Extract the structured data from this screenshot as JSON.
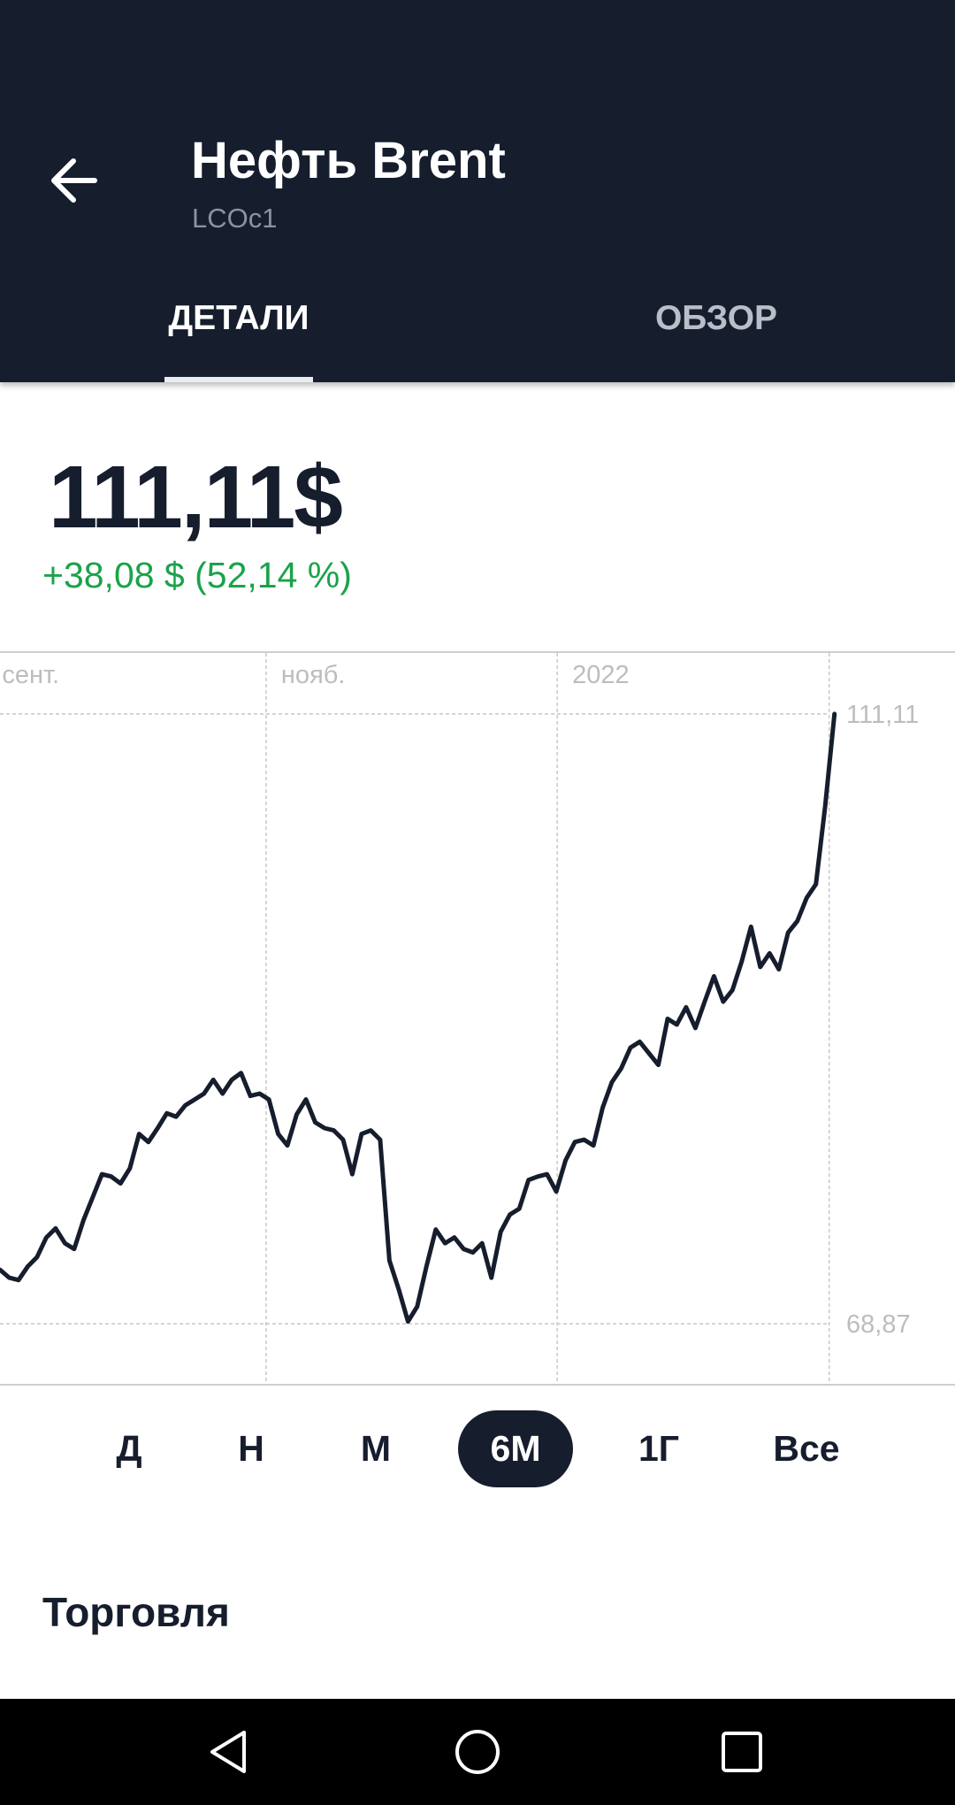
{
  "header": {
    "title": "Нефть Brent",
    "subtitle": "LCOc1"
  },
  "tabs": [
    "ДЕТАЛИ",
    "ОБЗОР"
  ],
  "quote": {
    "price": "111,11$",
    "change": "+38,08 $ (52,14 %)"
  },
  "chart_data": {
    "type": "line",
    "x": [
      0,
      1,
      2,
      3,
      4,
      5,
      6,
      7,
      8,
      9,
      10,
      11,
      12,
      13,
      14,
      15,
      16,
      17,
      18,
      19,
      20,
      21,
      22,
      23,
      24,
      25,
      26,
      27,
      28,
      29,
      30,
      31,
      32,
      33,
      34,
      35,
      36,
      37,
      38,
      39,
      40,
      41,
      42,
      43,
      44,
      45,
      46,
      47,
      48,
      49,
      50,
      51,
      52,
      53,
      54,
      55,
      56,
      57,
      58,
      59,
      60,
      61,
      62,
      63,
      64,
      65,
      66,
      67,
      68,
      69,
      70,
      71,
      72,
      73,
      74,
      75,
      76,
      77,
      78,
      79,
      80,
      81,
      82,
      83,
      84,
      85,
      86,
      87,
      88,
      89,
      90
    ],
    "values": [
      72.61,
      72.06,
      71.9,
      72.85,
      73.49,
      74.85,
      75.48,
      74.45,
      74.05,
      76.04,
      77.64,
      79.23,
      79.07,
      78.59,
      79.63,
      82.02,
      81.46,
      82.42,
      83.45,
      83.21,
      84.01,
      84.41,
      84.81,
      85.77,
      84.81,
      85.77,
      86.24,
      84.65,
      84.81,
      84.41,
      82.02,
      81.22,
      83.37,
      84.41,
      82.82,
      82.42,
      82.26,
      81.62,
      79.23,
      82.02,
      82.26,
      81.62,
      73.25,
      71.26,
      69.03,
      70.06,
      72.85,
      75.4,
      74.45,
      74.85,
      74.05,
      73.81,
      74.45,
      72.06,
      75.24,
      76.44,
      76.84,
      78.83,
      79.07,
      79.23,
      78.03,
      80.19,
      81.46,
      81.62,
      81.22,
      83.85,
      85.61,
      86.56,
      88.0,
      88.4,
      87.6,
      86.8,
      89.99,
      89.59,
      90.79,
      89.35,
      91.18,
      92.94,
      91.18,
      91.98,
      93.97,
      96.37,
      93.58,
      94.53,
      93.42,
      95.97,
      96.76,
      98.36,
      99.31,
      104.73,
      111.11
    ],
    "color": "#161d2d",
    "xlim": [
      0,
      103
    ],
    "ylim": [
      64.65,
      115.33
    ],
    "xticks": [
      {
        "value": -1.4,
        "label": "сент."
      },
      {
        "value": 28.7,
        "label": "нояб."
      },
      {
        "value": 60.1,
        "label": "2022"
      }
    ],
    "yticks": [
      {
        "value": 111.11,
        "label": "111,11"
      },
      {
        "value": 68.87,
        "label": "68,87"
      }
    ],
    "grid": true
  },
  "ranges": [
    "Д",
    "Н",
    "М",
    "6М",
    "1Г",
    "Все"
  ],
  "selected_range": 3,
  "section_title": "Торговля"
}
